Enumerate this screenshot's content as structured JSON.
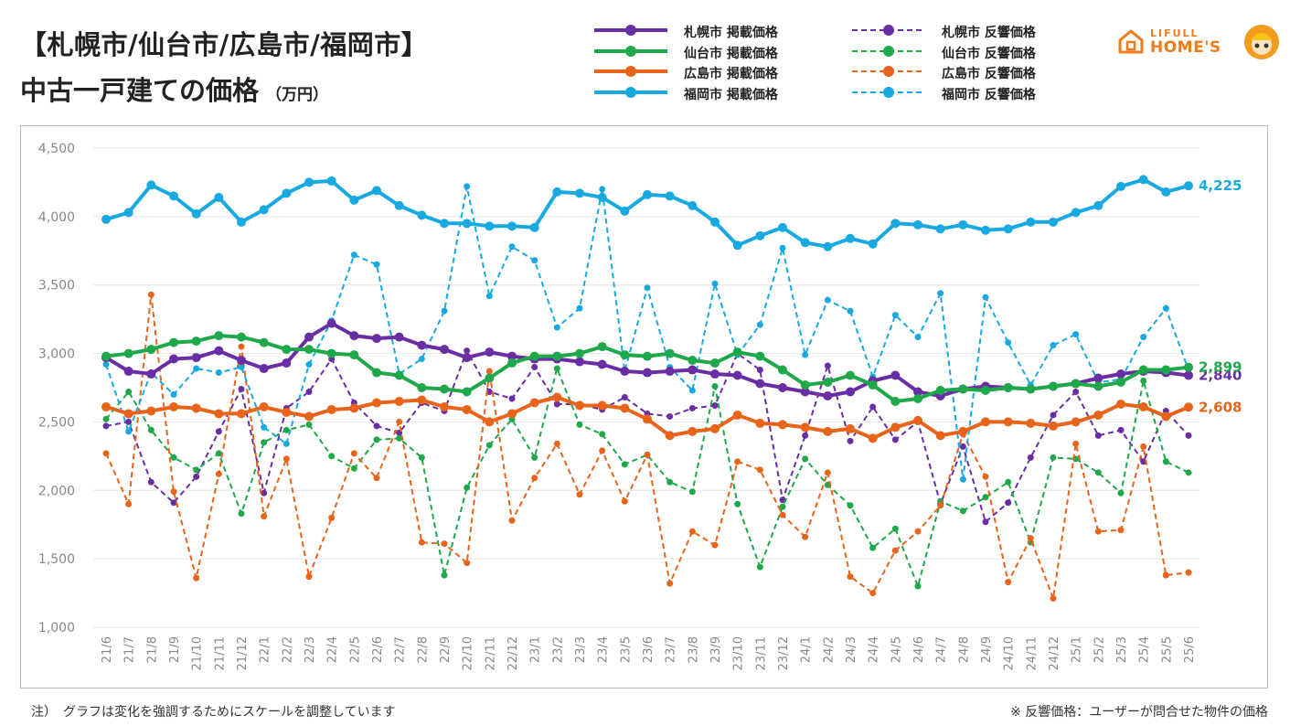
{
  "header": {
    "title_line1": "【札幌市/仙台市/広島市/福岡市】",
    "title_line2": "中古一戸建ての価格",
    "unit": "（万円）"
  },
  "logo": {
    "brand_top": "LIFULL",
    "brand_bottom": "HOME'S"
  },
  "footnotes": {
    "left": "注）　グラフは変化を強調するためにスケールを調整しています",
    "right": "※ 反響価格：ユーザーが問合せた物件の価格"
  },
  "chart_data": {
    "type": "line",
    "ylim": [
      1000,
      4500
    ],
    "yticks": [
      "1,000",
      "1,500",
      "2,000",
      "2,500",
      "3,000",
      "3,500",
      "4,000",
      "4,500"
    ],
    "categories": [
      "21/6",
      "21/7",
      "21/8",
      "21/9",
      "21/10",
      "21/11",
      "21/12",
      "22/1",
      "22/2",
      "22/3",
      "22/4",
      "22/5",
      "22/6",
      "22/7",
      "22/8",
      "22/9",
      "22/10",
      "22/11",
      "22/12",
      "23/1",
      "23/2",
      "23/3",
      "23/4",
      "23/5",
      "23/6",
      "23/7",
      "23/8",
      "23/9",
      "23/10",
      "23/11",
      "23/12",
      "24/1",
      "24/2",
      "24/3",
      "24/4",
      "24/5",
      "24/6",
      "24/7",
      "24/8",
      "24/9",
      "24/10",
      "24/11",
      "24/12",
      "25/1",
      "25/2",
      "25/3",
      "25/4",
      "25/5",
      "25/6"
    ],
    "grid": true,
    "legend_position": "top",
    "series": [
      {
        "name": "札幌市 掲載価格",
        "color": "#6a2ea4",
        "dashed": false,
        "values": [
          2970,
          2870,
          2850,
          2960,
          2970,
          3020,
          2950,
          2890,
          2930,
          3120,
          3220,
          3130,
          3110,
          3120,
          3060,
          3030,
          2970,
          3010,
          2980,
          2960,
          2960,
          2940,
          2920,
          2870,
          2860,
          2870,
          2880,
          2850,
          2840,
          2780,
          2750,
          2720,
          2690,
          2720,
          2800,
          2840,
          2720,
          2690,
          2740,
          2760,
          2750,
          2740,
          2760,
          2780,
          2820,
          2850,
          2870,
          2860,
          2840
        ],
        "end_label": "2,840"
      },
      {
        "name": "仙台市 掲載価格",
        "color": "#1fa84a",
        "dashed": false,
        "values": [
          2980,
          3000,
          3030,
          3080,
          3090,
          3130,
          3120,
          3080,
          3030,
          3030,
          3000,
          2990,
          2860,
          2840,
          2750,
          2740,
          2720,
          2820,
          2930,
          2980,
          2980,
          3000,
          3050,
          2990,
          2980,
          3000,
          2950,
          2930,
          3010,
          2980,
          2880,
          2770,
          2790,
          2840,
          2770,
          2650,
          2670,
          2730,
          2740,
          2730,
          2750,
          2740,
          2760,
          2780,
          2760,
          2790,
          2880,
          2880,
          2899
        ],
        "end_label": "2,899"
      },
      {
        "name": "広島市 掲載価格",
        "color": "#e8641b",
        "dashed": false,
        "values": [
          2610,
          2560,
          2580,
          2610,
          2600,
          2560,
          2560,
          2610,
          2570,
          2540,
          2590,
          2600,
          2640,
          2650,
          2660,
          2610,
          2590,
          2500,
          2560,
          2640,
          2680,
          2620,
          2620,
          2600,
          2520,
          2400,
          2430,
          2450,
          2550,
          2490,
          2480,
          2460,
          2430,
          2450,
          2380,
          2460,
          2510,
          2400,
          2430,
          2500,
          2500,
          2490,
          2470,
          2500,
          2550,
          2630,
          2610,
          2540,
          2608
        ],
        "end_label": "2,608"
      },
      {
        "name": "福岡市 掲載価格",
        "color": "#19a9e1",
        "dashed": false,
        "values": [
          3980,
          4030,
          4230,
          4150,
          4020,
          4140,
          3960,
          4050,
          4170,
          4250,
          4260,
          4120,
          4190,
          4080,
          4010,
          3950,
          3950,
          3930,
          3930,
          3920,
          4180,
          4170,
          4140,
          4040,
          4160,
          4150,
          4080,
          3960,
          3790,
          3860,
          3920,
          3810,
          3780,
          3840,
          3800,
          3950,
          3940,
          3910,
          3940,
          3900,
          3910,
          3960,
          3960,
          4030,
          4080,
          4220,
          4270,
          4180,
          4225
        ],
        "end_label": "4,225"
      },
      {
        "name": "札幌市 反響価格",
        "color": "#6a2ea4",
        "dashed": true,
        "values": [
          2470,
          2500,
          2060,
          1910,
          2100,
          2430,
          2740,
          1980,
          2600,
          2720,
          2960,
          2640,
          2470,
          2420,
          2640,
          2580,
          3020,
          2720,
          2670,
          2900,
          2630,
          2630,
          2590,
          2680,
          2560,
          2540,
          2600,
          2620,
          3000,
          2880,
          1930,
          2400,
          2910,
          2360,
          2610,
          2370,
          2500,
          1900,
          2320,
          1770,
          1910,
          2240,
          2550,
          2720,
          2400,
          2440,
          2210,
          2580,
          2400
        ]
      },
      {
        "name": "仙台市 反響価格",
        "color": "#1fa84a",
        "dashed": true,
        "values": [
          2520,
          2720,
          2440,
          2240,
          2150,
          2270,
          1830,
          2350,
          2440,
          2480,
          2250,
          2160,
          2370,
          2380,
          2240,
          1380,
          2020,
          2330,
          2520,
          2240,
          2890,
          2480,
          2410,
          2190,
          2260,
          2060,
          1990,
          2760,
          1900,
          1440,
          1880,
          2230,
          2040,
          1890,
          1580,
          1720,
          1300,
          1920,
          1850,
          1950,
          2060,
          1620,
          2240,
          2230,
          2130,
          1980,
          2800,
          2210,
          2130
        ]
      },
      {
        "name": "広島市 反響価格",
        "color": "#e8641b",
        "dashed": true,
        "values": [
          2270,
          1900,
          3430,
          1990,
          1360,
          2120,
          3050,
          1810,
          2230,
          1370,
          1800,
          2270,
          2090,
          2500,
          1620,
          1610,
          1470,
          2870,
          1780,
          2090,
          2340,
          1970,
          2290,
          1920,
          2260,
          1320,
          1700,
          1600,
          2210,
          2150,
          1820,
          1660,
          2130,
          1370,
          1250,
          1560,
          1700,
          1890,
          2410,
          2100,
          1330,
          1650,
          1210,
          2340,
          1700,
          1710,
          2320,
          1380,
          1400
        ]
      },
      {
        "name": "福岡市 反響価格",
        "color": "#19a9e1",
        "dashed": true,
        "values": [
          2920,
          2430,
          2860,
          2700,
          2890,
          2860,
          2900,
          2460,
          2340,
          2920,
          3240,
          3720,
          3650,
          2850,
          2960,
          3310,
          4220,
          3420,
          3780,
          3680,
          3190,
          3330,
          4200,
          2870,
          3480,
          2900,
          2730,
          3510,
          2990,
          3210,
          3770,
          2990,
          3390,
          3310,
          2830,
          3280,
          3120,
          3440,
          2080,
          3410,
          3080,
          2770,
          3060,
          3140,
          2790,
          2810,
          3120,
          3330,
          2880
        ]
      }
    ]
  }
}
